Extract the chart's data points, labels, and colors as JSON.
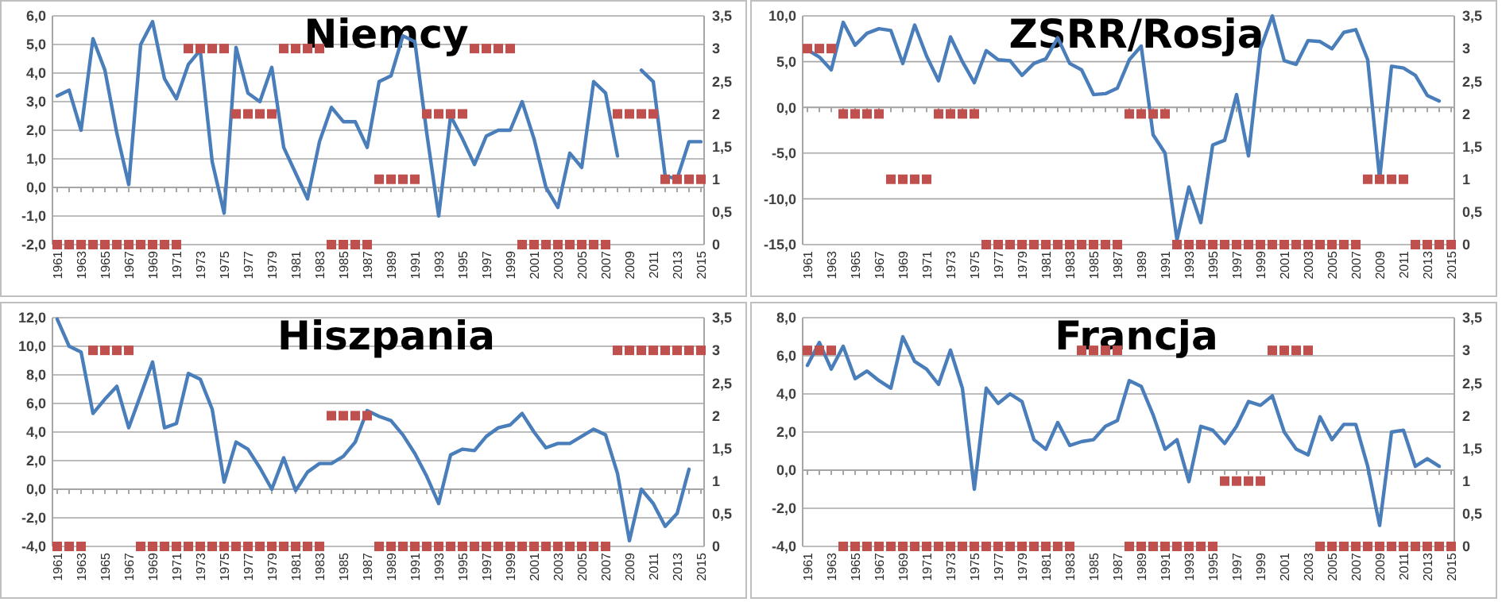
{
  "chart_data": [
    {
      "type": "line",
      "title": "Niemcy",
      "categories": [
        "1961",
        null,
        "1963",
        null,
        "1965",
        null,
        "1967",
        null,
        "1969",
        null,
        "1971",
        null,
        "1973",
        null,
        "1975",
        null,
        "1977",
        null,
        "1979",
        null,
        "1981",
        null,
        "1983",
        null,
        "1985",
        null,
        "1987",
        null,
        "1989",
        null,
        "1991",
        null,
        "1993",
        null,
        "1995",
        null,
        "1997",
        null,
        "1999",
        null,
        "2001",
        null,
        "2003",
        null,
        "2005",
        null,
        "2007",
        null,
        "2009",
        null,
        "2011",
        null,
        "2013",
        null,
        "2015"
      ],
      "series": [
        {
          "type": "line",
          "color": "#4a7ebb",
          "marker": "none",
          "values": [
            3.2,
            3.4,
            2.0,
            5.2,
            4.1,
            1.9,
            0.1,
            5.0,
            5.8,
            3.8,
            3.1,
            4.3,
            4.8,
            0.9,
            -0.9,
            4.9,
            3.3,
            3.0,
            4.2,
            1.4,
            0.5,
            -0.4,
            1.6,
            2.8,
            2.3,
            2.3,
            1.4,
            3.7,
            3.9,
            5.3,
            5.1,
            1.9,
            -1.0,
            2.5,
            1.7,
            0.8,
            1.8,
            2.0,
            2.0,
            3.0,
            1.7,
            0.0,
            -0.7,
            1.2,
            0.7,
            3.7,
            3.3,
            1.1,
            null,
            4.1,
            3.7,
            0.4,
            0.3,
            1.6,
            1.6
          ]
        },
        {
          "type": "scatter",
          "axis": "y2",
          "color": "#c0504d",
          "marker": "square",
          "values": [
            0,
            0,
            0,
            0,
            0,
            0,
            0,
            0,
            0,
            0,
            0,
            3,
            3,
            3,
            3,
            2,
            2,
            2,
            2,
            3,
            3,
            3,
            3,
            0,
            0,
            0,
            0,
            1,
            1,
            1,
            1,
            2,
            2,
            2,
            2,
            3,
            3,
            3,
            3,
            0,
            0,
            0,
            0,
            0,
            0,
            0,
            0,
            2,
            2,
            2,
            2,
            1,
            1,
            1,
            1
          ]
        }
      ],
      "ylim": [
        -2,
        6
      ],
      "yticks": [
        {
          "value": -2,
          "label": "-2,0"
        },
        {
          "value": -1,
          "label": "-1,0"
        },
        {
          "value": 0,
          "label": "0,0"
        },
        {
          "value": 1,
          "label": "1,0"
        },
        {
          "value": 2,
          "label": "2,0"
        },
        {
          "value": 3,
          "label": "3,0"
        },
        {
          "value": 4,
          "label": "4,0"
        },
        {
          "value": 5,
          "label": "5,0"
        },
        {
          "value": 6,
          "label": "6,0"
        }
      ],
      "y2lim": [
        0,
        3.5
      ],
      "y2ticks": [
        0,
        {
          "value": 0.5,
          "label": "0,5"
        },
        1,
        {
          "value": 1.5,
          "label": "1,5"
        },
        2,
        {
          "value": 2.5,
          "label": "2,5"
        },
        3,
        {
          "value": 3.5,
          "label": "3,5"
        }
      ],
      "grid": "y"
    },
    {
      "type": "line",
      "title": "ZSRR/Rosja",
      "categories": [
        "1961",
        null,
        "1963",
        null,
        "1965",
        null,
        "1967",
        null,
        "1969",
        null,
        "1971",
        null,
        "1973",
        null,
        "1975",
        null,
        "1977",
        null,
        "1979",
        null,
        "1981",
        null,
        "1983",
        null,
        "1985",
        null,
        "1987",
        null,
        "1989",
        null,
        "1991",
        null,
        "1993",
        null,
        "1995",
        null,
        "1997",
        null,
        "1999",
        null,
        "2001",
        null,
        "2003",
        null,
        "2005",
        null,
        "2007",
        null,
        "2009",
        null,
        "2011",
        null,
        "2013",
        null,
        "2015"
      ],
      "series": [
        {
          "type": "line",
          "color": "#4a7ebb",
          "marker": "none",
          "values": [
            6.3,
            5.5,
            4.1,
            9.3,
            6.8,
            8.1,
            8.6,
            8.4,
            4.8,
            9.0,
            5.6,
            2.9,
            7.7,
            5.0,
            2.7,
            6.2,
            5.2,
            5.1,
            3.5,
            4.8,
            5.3,
            7.6,
            4.8,
            4.1,
            1.4,
            1.5,
            2.1,
            5.2,
            6.7,
            -3.0,
            -5.0,
            -14.5,
            -8.7,
            -12.6,
            -4.1,
            -3.6,
            1.4,
            -5.3,
            6.4,
            10.0,
            5.1,
            4.7,
            7.3,
            7.2,
            6.4,
            8.2,
            8.5,
            5.2,
            -7.8,
            4.5,
            4.3,
            3.5,
            1.3,
            0.7,
            null
          ]
        },
        {
          "type": "scatter",
          "axis": "y2",
          "color": "#c0504d",
          "marker": "square",
          "values": [
            3,
            3,
            3,
            2,
            2,
            2,
            2,
            1,
            1,
            1,
            1,
            2,
            2,
            2,
            2,
            0,
            0,
            0,
            0,
            0,
            0,
            0,
            0,
            0,
            0,
            0,
            0,
            2,
            2,
            2,
            2,
            0,
            0,
            0,
            0,
            0,
            0,
            0,
            0,
            0,
            0,
            0,
            0,
            0,
            0,
            0,
            0,
            1,
            1,
            1,
            1,
            0,
            0,
            0,
            0
          ]
        }
      ],
      "ylim": [
        -15,
        10
      ],
      "yticks": [
        {
          "value": -15,
          "label": "-15,0"
        },
        {
          "value": -10,
          "label": "-10,0"
        },
        {
          "value": -5,
          "label": "-5,0"
        },
        {
          "value": 0,
          "label": "0,0"
        },
        {
          "value": 5,
          "label": "5,0"
        },
        {
          "value": 10,
          "label": "10,0"
        }
      ],
      "y2lim": [
        0,
        3.5
      ],
      "y2ticks": [
        0,
        {
          "value": 0.5,
          "label": "0,5"
        },
        1,
        {
          "value": 1.5,
          "label": "1,5"
        },
        2,
        {
          "value": 2.5,
          "label": "2,5"
        },
        3,
        {
          "value": 3.5,
          "label": "3,5"
        }
      ],
      "grid": "y"
    },
    {
      "type": "line",
      "title": "Hiszpania",
      "categories": [
        "1961",
        null,
        "1963",
        null,
        "1965",
        null,
        "1967",
        null,
        "1969",
        null,
        "1971",
        null,
        "1973",
        null,
        "1975",
        null,
        "1977",
        null,
        "1979",
        null,
        "1981",
        null,
        "1983",
        null,
        "1985",
        null,
        "1987",
        null,
        "1989",
        null,
        "1991",
        null,
        "1993",
        null,
        "1995",
        null,
        "1997",
        null,
        "1999",
        null,
        "2001",
        null,
        "2003",
        null,
        "2005",
        null,
        "2007",
        null,
        "2009",
        null,
        "2011",
        null,
        "2013",
        null,
        "2015"
      ],
      "series": [
        {
          "type": "line",
          "color": "#4a7ebb",
          "marker": "none",
          "values": [
            11.9,
            10.0,
            9.6,
            5.3,
            6.3,
            7.2,
            4.3,
            6.6,
            8.9,
            4.3,
            4.6,
            8.1,
            7.7,
            5.6,
            0.5,
            3.3,
            2.8,
            1.5,
            0.0,
            2.2,
            -0.1,
            1.2,
            1.8,
            1.8,
            2.3,
            3.3,
            5.5,
            5.1,
            4.8,
            3.8,
            2.5,
            0.9,
            -1.0,
            2.4,
            2.8,
            2.7,
            3.7,
            4.3,
            4.5,
            5.3,
            4.0,
            2.9,
            3.2,
            3.2,
            3.7,
            4.2,
            3.8,
            1.1,
            -3.6,
            0.0,
            -1.0,
            -2.6,
            -1.7,
            1.4,
            null
          ]
        },
        {
          "type": "scatter",
          "axis": "y2",
          "color": "#c0504d",
          "marker": "square",
          "values": [
            0,
            0,
            0,
            3,
            3,
            3,
            3,
            0,
            0,
            0,
            0,
            0,
            0,
            0,
            0,
            0,
            0,
            0,
            0,
            0,
            0,
            0,
            0,
            2,
            2,
            2,
            2,
            0,
            0,
            0,
            0,
            0,
            0,
            0,
            0,
            0,
            0,
            0,
            0,
            0,
            0,
            0,
            0,
            0,
            0,
            0,
            0,
            3,
            3,
            3,
            3,
            3,
            3,
            3,
            3
          ]
        }
      ],
      "ylim": [
        -4,
        12
      ],
      "yticks": [
        {
          "value": -4,
          "label": "-4,0"
        },
        {
          "value": -2,
          "label": "-2,0"
        },
        {
          "value": 0,
          "label": "0,0"
        },
        {
          "value": 2,
          "label": "2,0"
        },
        {
          "value": 4,
          "label": "4,0"
        },
        {
          "value": 6,
          "label": "6,0"
        },
        {
          "value": 8,
          "label": "8,0"
        },
        {
          "value": 10,
          "label": "10,0"
        },
        {
          "value": 12,
          "label": "12,0"
        }
      ],
      "y2lim": [
        0,
        3.5
      ],
      "y2ticks": [
        0,
        {
          "value": 0.5,
          "label": "0,5"
        },
        1,
        {
          "value": 1.5,
          "label": "1,5"
        },
        2,
        {
          "value": 2.5,
          "label": "2,5"
        },
        3,
        {
          "value": 3.5,
          "label": "3,5"
        }
      ],
      "grid": "y"
    },
    {
      "type": "line",
      "title": "Francja",
      "categories": [
        "1961",
        null,
        "1963",
        null,
        "1965",
        null,
        "1967",
        null,
        "1969",
        null,
        "1971",
        null,
        "1973",
        null,
        "1975",
        null,
        "1977",
        null,
        "1979",
        null,
        "1981",
        null,
        "1983",
        null,
        "1985",
        null,
        "1987",
        null,
        "1989",
        null,
        "1991",
        null,
        "1993",
        null,
        "1995",
        null,
        "1997",
        null,
        "1999",
        null,
        "2001",
        null,
        "2003",
        null,
        "2005",
        null,
        "2007",
        null,
        "2009",
        null,
        "2011",
        null,
        "2013",
        null,
        "2015"
      ],
      "series": [
        {
          "type": "line",
          "color": "#4a7ebb",
          "marker": "none",
          "values": [
            5.5,
            6.7,
            5.3,
            6.5,
            4.8,
            5.2,
            4.7,
            4.3,
            7.0,
            5.7,
            5.3,
            4.5,
            6.3,
            4.3,
            -1.0,
            4.3,
            3.5,
            4.0,
            3.6,
            1.6,
            1.1,
            2.5,
            1.3,
            1.5,
            1.6,
            2.3,
            2.6,
            4.7,
            4.4,
            2.9,
            1.1,
            1.6,
            -0.6,
            2.3,
            2.1,
            1.4,
            2.3,
            3.6,
            3.4,
            3.9,
            2.0,
            1.1,
            0.8,
            2.8,
            1.6,
            2.4,
            2.4,
            0.2,
            -2.9,
            2.0,
            2.1,
            0.2,
            0.6,
            0.2,
            null
          ]
        },
        {
          "type": "scatter",
          "axis": "y2",
          "color": "#c0504d",
          "marker": "square",
          "values": [
            3,
            3,
            3,
            0,
            0,
            0,
            0,
            0,
            0,
            0,
            0,
            0,
            0,
            0,
            0,
            0,
            0,
            0,
            0,
            0,
            0,
            0,
            0,
            3,
            3,
            3,
            3,
            0,
            0,
            0,
            0,
            0,
            0,
            0,
            0,
            1,
            1,
            1,
            1,
            3,
            3,
            3,
            3,
            0,
            0,
            0,
            0,
            0,
            0,
            0,
            0,
            0,
            0,
            0,
            0
          ]
        }
      ],
      "ylim": [
        -4,
        8
      ],
      "yticks": [
        {
          "value": -4,
          "label": "-4,0"
        },
        {
          "value": -2,
          "label": "-2,0"
        },
        {
          "value": 0,
          "label": "0,0"
        },
        {
          "value": 2,
          "label": "2,0"
        },
        {
          "value": 4,
          "label": "4,0"
        },
        {
          "value": 6,
          "label": "6,0"
        },
        {
          "value": 8,
          "label": "8,0"
        }
      ],
      "y2lim": [
        0,
        3.5
      ],
      "y2ticks": [
        0,
        {
          "value": 0.5,
          "label": "0,5"
        },
        1,
        {
          "value": 1.5,
          "label": "1,5"
        },
        2,
        {
          "value": 2.5,
          "label": "2,5"
        },
        3,
        {
          "value": 3.5,
          "label": "3,5"
        }
      ],
      "grid": "y"
    }
  ]
}
